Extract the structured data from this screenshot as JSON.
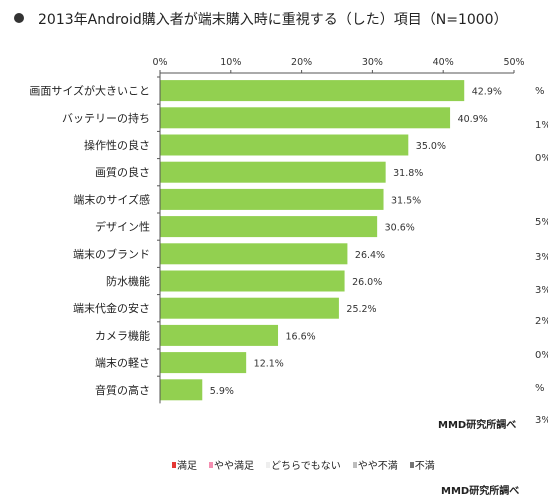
{
  "header": {
    "title": "2013年Android購入者が端末購入時に重視する（した）項目（N=1000）"
  },
  "chart_data": {
    "type": "bar",
    "orientation": "horizontal",
    "title": "2013年Android購入者が端末購入時に重視する（した）項目（N=1000）",
    "categories": [
      "画面サイズが大きいこと",
      "バッテリーの持ち",
      "操作性の良さ",
      "画質の良さ",
      "端末のサイズ感",
      "デザイン性",
      "端末のブランド",
      "防水機能",
      "端末代金の安さ",
      "カメラ機能",
      "端末の軽さ",
      "音質の高さ"
    ],
    "values": [
      42.9,
      40.9,
      35.0,
      31.8,
      31.5,
      30.6,
      26.4,
      26.0,
      25.2,
      16.6,
      12.1,
      5.9
    ],
    "value_labels": [
      "42.9%",
      "40.9%",
      "35.0%",
      "31.8%",
      "31.5%",
      "30.6%",
      "26.4%",
      "26.0%",
      "25.2%",
      "16.6%",
      "12.1%",
      "5.9%"
    ],
    "xlim": [
      0,
      50
    ],
    "xticks": [
      "0%",
      "10%",
      "20%",
      "30%",
      "40%",
      "50%"
    ],
    "bar_color": "#92d050",
    "grid": false
  },
  "credit": {
    "top": "MMD研究所調べ",
    "bottom": "MMD研究所調べ"
  },
  "legend": {
    "items": [
      {
        "label": "満足",
        "color": "#e53935"
      },
      {
        "label": "やや満足",
        "color": "#f48fb1"
      },
      {
        "label": "どちらでもない",
        "color": "#eeeeee"
      },
      {
        "label": "やや不満",
        "color": "#bdbdbd"
      },
      {
        "label": "不満",
        "color": "#757575"
      }
    ]
  },
  "edge_fragments": [
    "%",
    "1%",
    "0%",
    "5%",
    "3%",
    "3%",
    "2%",
    "0%",
    "%",
    "3%"
  ]
}
